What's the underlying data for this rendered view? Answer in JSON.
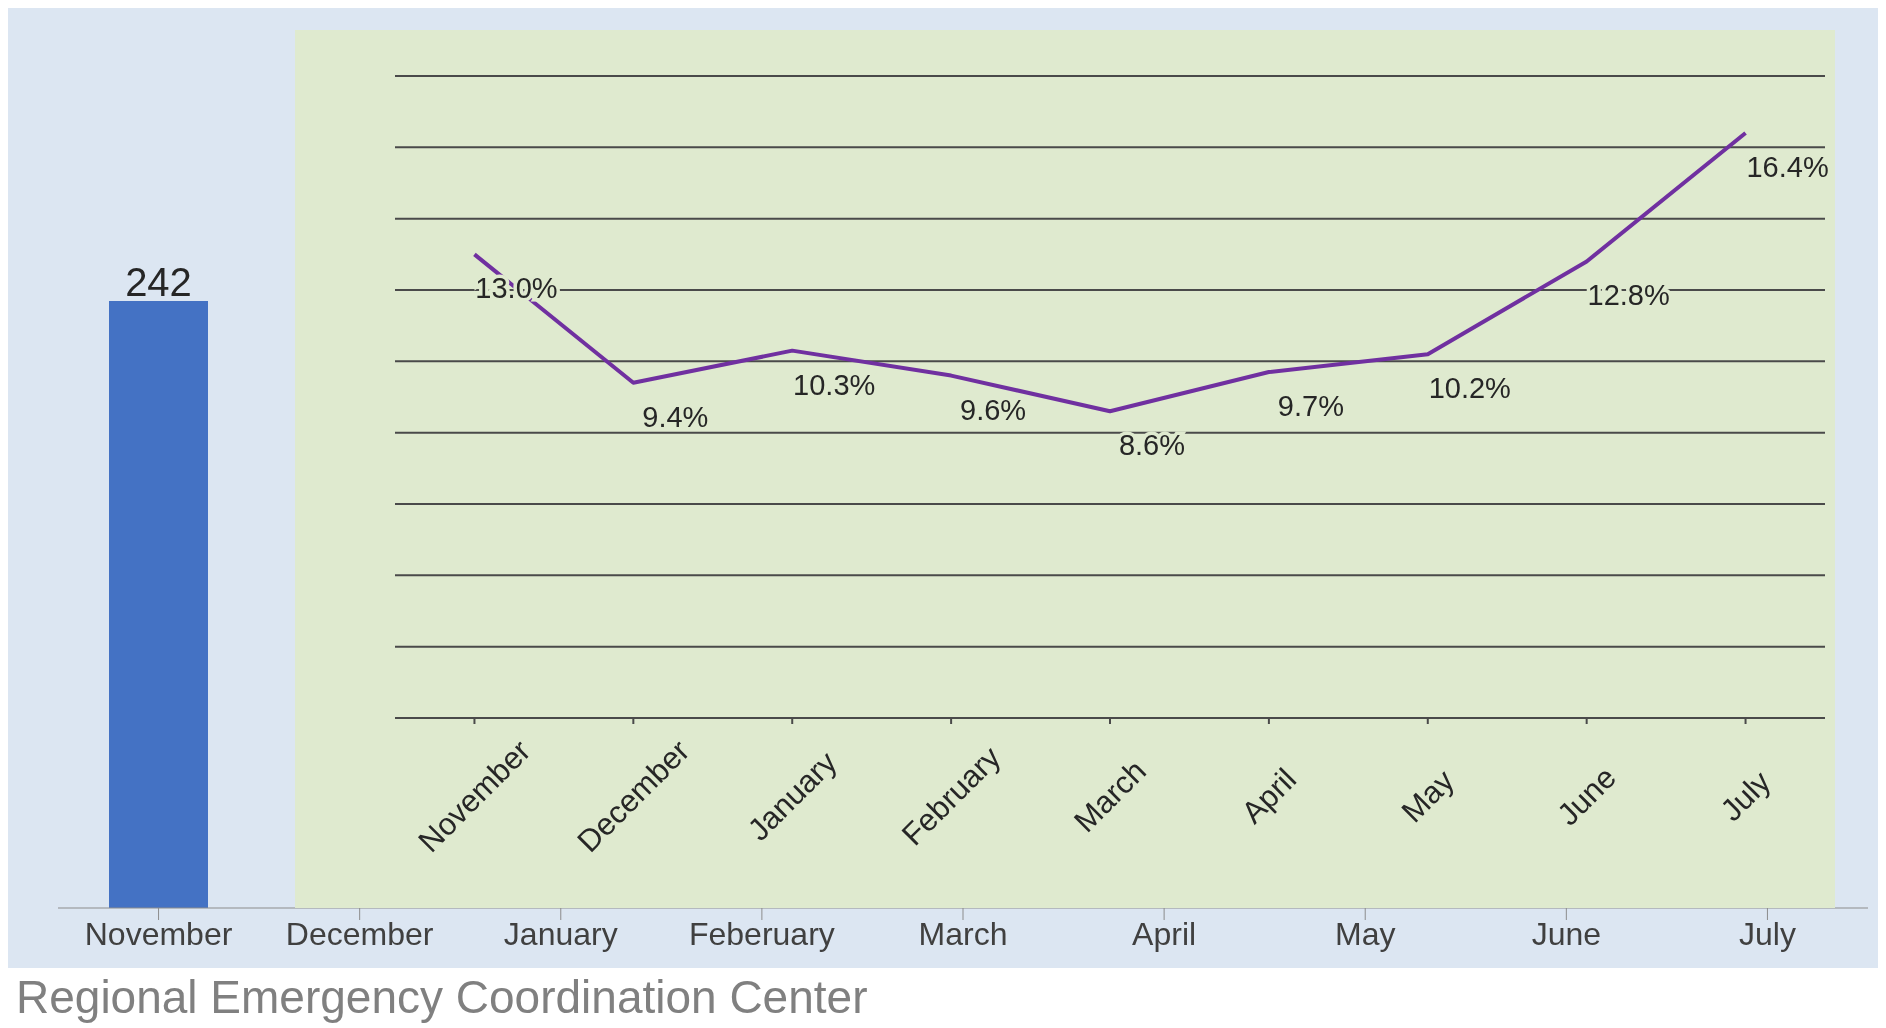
{
  "chart_data": [
    {
      "type": "bar",
      "categories": [
        "November",
        "December",
        "January",
        "Feberuary",
        "March",
        "April",
        "May",
        "June",
        "July"
      ],
      "values": [
        242,
        null,
        null,
        null,
        null,
        null,
        null,
        null,
        null
      ],
      "color": "#4472c4",
      "data_labels": true,
      "grid": false,
      "legend": false,
      "annotations": [
        "Regional Emergency Coordination Center"
      ]
    },
    {
      "type": "line",
      "categories": [
        "November",
        "December",
        "January",
        "February",
        "March",
        "April",
        "May",
        "June",
        "July"
      ],
      "values": [
        13.0,
        9.4,
        10.3,
        9.6,
        8.6,
        9.7,
        10.2,
        12.8,
        16.4
      ],
      "color": "#7030a0",
      "value_labels": [
        "13.0%",
        "9.4%",
        "10.3%",
        "9.6%",
        "8.6%",
        "9.7%",
        "10.2%",
        "12.8%",
        "16.4%"
      ],
      "ylim": [
        0,
        18
      ],
      "yticks": [
        {
          "value": 0,
          "label": null
        },
        {
          "value": 2,
          "label": null
        },
        {
          "value": 4,
          "label": null
        },
        {
          "value": 6,
          "label": null
        },
        {
          "value": 8,
          "label": null
        },
        {
          "value": 10,
          "label": null
        },
        {
          "value": 12,
          "label": null
        },
        {
          "value": 14,
          "label": null
        },
        {
          "value": 16,
          "label": null
        },
        {
          "value": 18,
          "label": null
        }
      ],
      "grid": "y",
      "tick_labels": "x",
      "marker": "none",
      "line_style": "solid",
      "legend": false
    }
  ]
}
